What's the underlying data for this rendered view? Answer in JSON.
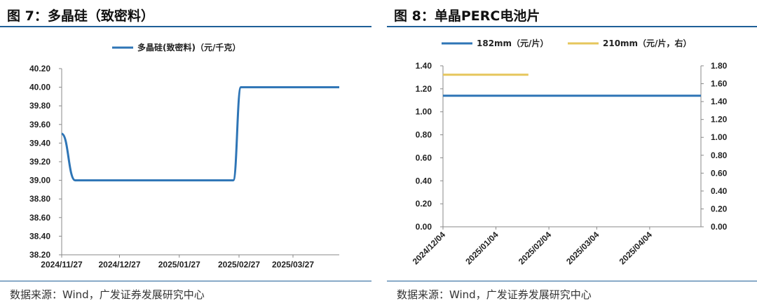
{
  "figures": [
    {
      "title": "图 7：多晶硅（致密料）",
      "source": "数据来源：Wind，广发证券发展研究中心"
    },
    {
      "title": "图 8：单晶PERC电池片",
      "source": "数据来源：Wind，广发证券发展研究中心"
    }
  ],
  "chart_data": [
    {
      "type": "line",
      "title": "",
      "xlabel": "",
      "ylabel": "",
      "ylim": [
        38.2,
        40.2
      ],
      "yticks": [
        "40.20",
        "40.00",
        "39.80",
        "39.60",
        "39.40",
        "39.20",
        "39.00",
        "38.80",
        "38.60",
        "38.40",
        "38.20"
      ],
      "xlim": [
        "2024-11-27",
        "2025-04-20"
      ],
      "xticks": [
        "2024/11/27",
        "2024/12/27",
        "2025/01/27",
        "2025/02/27",
        "2025/03/27"
      ],
      "xtick_dates": [
        "2024-11-27",
        "2024-12-27",
        "2025-01-27",
        "2025-02-27",
        "2025-03-27"
      ],
      "grid": false,
      "legend_position": "top-center",
      "series": [
        {
          "name": "多晶硅(致密料)（元/千克）",
          "color": "#2e75b6",
          "x": [
            "2024-11-27",
            "2024-12-04",
            "2024-12-11",
            "2025-02-17",
            "2025-02-24",
            "2025-02-28",
            "2025-03-04",
            "2025-04-20"
          ],
          "y": [
            39.5,
            39.0,
            39.0,
            39.0,
            39.0,
            40.0,
            40.0,
            40.0
          ]
        }
      ]
    },
    {
      "type": "line",
      "title": "",
      "xlabel": "",
      "ylabel": "",
      "ylim": [
        0,
        1.4
      ],
      "y2lim": [
        0,
        1.8
      ],
      "yticks": [
        "1.40",
        "1.20",
        "1.00",
        "0.80",
        "0.60",
        "0.40",
        "0.20",
        "0.00"
      ],
      "y2ticks": [
        "1.80",
        "1.60",
        "1.40",
        "1.20",
        "1.00",
        "0.80",
        "0.60",
        "0.40",
        "0.20",
        "0.00"
      ],
      "xlim": [
        "2024-12-04",
        "2025-05-04"
      ],
      "xticks": [
        "2024/12/04",
        "2025/01/04",
        "2025/02/04",
        "2025/03/04",
        "2025/04/04"
      ],
      "xtick_dates": [
        "2024-12-04",
        "2025-01-04",
        "2025-02-04",
        "2025-03-04",
        "2025-04-04"
      ],
      "grid": false,
      "legend_position": "top",
      "series": [
        {
          "name": "182mm（元/片）",
          "color": "#2e75b6",
          "axis": "left",
          "x": [
            "2024-12-04",
            "2025-05-04"
          ],
          "y": [
            1.14,
            1.14
          ]
        },
        {
          "name": "210mm（元/片，右）",
          "color": "#e6c65c",
          "axis": "right",
          "x": [
            "2024-12-04",
            "2025-01-23"
          ],
          "y": [
            1.7,
            1.7
          ]
        }
      ]
    }
  ]
}
